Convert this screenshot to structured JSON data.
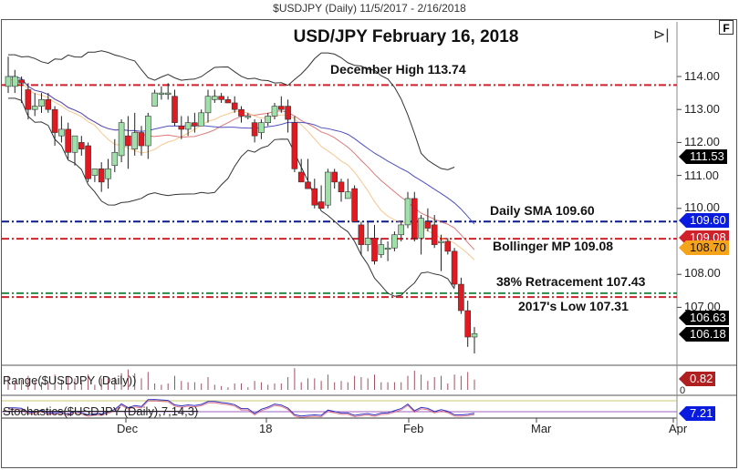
{
  "header": {
    "symbol_range": "$USDJPY (Daily)  11/5/2017 - 2/16/2018",
    "chart_title": "USD/JPY February 16, 2018",
    "f_button": "F",
    "play_icon": "⊳|"
  },
  "annotations": {
    "dec_high": "December High 113.74",
    "daily_sma": "Daily SMA 109.60",
    "bollinger_mp": "Bollinger MP 109.08",
    "retracement": "38% Retracement 107.43",
    "low_2017": "2017's Low 107.31"
  },
  "y_axis": {
    "ticks": [
      "114.00",
      "113.00",
      "112.00",
      "111.00",
      "110.00",
      "108.00",
      "107.00"
    ]
  },
  "badges": {
    "upper_band": {
      "value": "111.53",
      "color": "#000000"
    },
    "sma": {
      "value": "109.60",
      "color": "#0a1be0"
    },
    "bollinger_mp": {
      "value": "109.08",
      "color": "#d0202a"
    },
    "ema": {
      "value": "108.70",
      "color": "#f5a31a"
    },
    "lower_band": {
      "value": "106.63",
      "color": "#000000"
    },
    "close": {
      "value": "106.18",
      "color": "#000000"
    },
    "range": {
      "value": "0.82",
      "color": "#b02020"
    },
    "stoch": {
      "value": "7.21",
      "color": "#0a1be0"
    }
  },
  "panes": {
    "range_label": "Range($USDJPY (Daily))",
    "range_zero": "0",
    "stoch_label": "Stochastics($USDJPY (Daily),7,14,3)"
  },
  "x_axis": {
    "ticks": [
      "Dec",
      "18",
      "Feb",
      "Mar",
      "Apr"
    ]
  },
  "chart_data": {
    "type": "candlestick",
    "title": "USD/JPY February 16, 2018",
    "subtitle": "$USDJPY (Daily) 11/5/2017 - 2/16/2018",
    "xlabel": "",
    "ylabel": "",
    "ylim": [
      105.6,
      114.8
    ],
    "x_ticks": [
      "Dec",
      "18",
      "Feb",
      "Mar",
      "Apr"
    ],
    "grid": false,
    "horizontal_levels": [
      {
        "label": "December High",
        "value": 113.74,
        "color": "#d0202a",
        "style": "dash-dot"
      },
      {
        "label": "Daily SMA",
        "value": 109.6,
        "color": "#0a1b8f",
        "style": "dash-dot"
      },
      {
        "label": "Bollinger MP",
        "value": 109.08,
        "color": "#d0202a",
        "style": "dash-dot"
      },
      {
        "label": "38% Retracement",
        "value": 107.43,
        "color": "#2a8a4a",
        "style": "dash-dot"
      },
      {
        "label": "2017's Low",
        "value": 107.31,
        "color": "#d0202a",
        "style": "dash-dot"
      }
    ],
    "last_values": {
      "upper_bollinger": 111.53,
      "sma": 109.6,
      "bollinger_mp": 109.08,
      "ema": 108.7,
      "lower_bollinger": 106.63,
      "close": 106.18,
      "range": 0.82,
      "stochastics": 7.21
    },
    "candles": [
      {
        "o": 113.7,
        "h": 114.6,
        "l": 113.5,
        "c": 114.0
      },
      {
        "o": 113.7,
        "h": 114.2,
        "l": 113.5,
        "c": 114.0
      },
      {
        "o": 113.9,
        "h": 114.0,
        "l": 113.2,
        "c": 113.8
      },
      {
        "o": 113.6,
        "h": 113.8,
        "l": 112.7,
        "c": 113.0
      },
      {
        "o": 113.0,
        "h": 113.5,
        "l": 112.8,
        "c": 113.1
      },
      {
        "o": 113.1,
        "h": 113.5,
        "l": 112.9,
        "c": 113.3
      },
      {
        "o": 113.3,
        "h": 113.5,
        "l": 112.9,
        "c": 113.0
      },
      {
        "o": 113.0,
        "h": 113.1,
        "l": 111.9,
        "c": 112.3
      },
      {
        "o": 112.2,
        "h": 112.8,
        "l": 112.0,
        "c": 112.4
      },
      {
        "o": 112.4,
        "h": 112.6,
        "l": 111.5,
        "c": 111.7
      },
      {
        "o": 111.7,
        "h": 112.2,
        "l": 111.3,
        "c": 112.2
      },
      {
        "o": 112.0,
        "h": 112.2,
        "l": 111.6,
        "c": 111.8
      },
      {
        "o": 111.9,
        "h": 112.0,
        "l": 110.8,
        "c": 110.9
      },
      {
        "o": 111.0,
        "h": 111.2,
        "l": 110.8,
        "c": 111.2
      },
      {
        "o": 111.2,
        "h": 111.4,
        "l": 110.5,
        "c": 110.8
      },
      {
        "o": 110.9,
        "h": 111.5,
        "l": 110.6,
        "c": 111.2
      },
      {
        "o": 111.3,
        "h": 112.1,
        "l": 111.1,
        "c": 111.7
      },
      {
        "o": 111.6,
        "h": 112.7,
        "l": 111.4,
        "c": 112.6
      },
      {
        "o": 112.2,
        "h": 112.8,
        "l": 111.2,
        "c": 111.9
      },
      {
        "o": 111.8,
        "h": 112.9,
        "l": 111.6,
        "c": 112.3
      },
      {
        "o": 112.3,
        "h": 112.5,
        "l": 111.6,
        "c": 111.9
      },
      {
        "o": 111.9,
        "h": 112.9,
        "l": 111.5,
        "c": 112.8
      },
      {
        "o": 113.1,
        "h": 113.6,
        "l": 113.1,
        "c": 113.5
      },
      {
        "o": 113.5,
        "h": 113.7,
        "l": 113.3,
        "c": 113.5
      },
      {
        "o": 113.5,
        "h": 113.8,
        "l": 113.3,
        "c": 113.5
      },
      {
        "o": 113.4,
        "h": 113.6,
        "l": 112.5,
        "c": 112.6
      },
      {
        "o": 112.5,
        "h": 112.8,
        "l": 112.1,
        "c": 112.4
      },
      {
        "o": 112.4,
        "h": 112.8,
        "l": 112.2,
        "c": 112.6
      },
      {
        "o": 112.6,
        "h": 112.9,
        "l": 112.3,
        "c": 112.5
      },
      {
        "o": 112.5,
        "h": 113.0,
        "l": 112.5,
        "c": 112.9
      },
      {
        "o": 112.9,
        "h": 113.6,
        "l": 112.6,
        "c": 113.4
      },
      {
        "o": 113.3,
        "h": 113.6,
        "l": 113.2,
        "c": 113.4
      },
      {
        "o": 113.4,
        "h": 113.5,
        "l": 113.2,
        "c": 113.3
      },
      {
        "o": 113.3,
        "h": 113.4,
        "l": 113.2,
        "c": 113.2
      },
      {
        "o": 113.2,
        "h": 113.4,
        "l": 112.9,
        "c": 113.0
      },
      {
        "o": 113.0,
        "h": 113.1,
        "l": 112.6,
        "c": 112.8
      },
      {
        "o": 112.8,
        "h": 112.9,
        "l": 112.7,
        "c": 112.8
      },
      {
        "o": 112.6,
        "h": 112.7,
        "l": 112.0,
        "c": 112.2
      },
      {
        "o": 112.3,
        "h": 112.7,
        "l": 112.1,
        "c": 112.6
      },
      {
        "o": 112.6,
        "h": 112.9,
        "l": 112.5,
        "c": 112.8
      },
      {
        "o": 112.8,
        "h": 113.2,
        "l": 112.7,
        "c": 113.1
      },
      {
        "o": 113.1,
        "h": 113.4,
        "l": 112.9,
        "c": 113.0
      },
      {
        "o": 113.1,
        "h": 113.3,
        "l": 112.3,
        "c": 112.7
      },
      {
        "o": 112.6,
        "h": 112.8,
        "l": 111.1,
        "c": 111.2
      },
      {
        "o": 111.1,
        "h": 111.5,
        "l": 110.9,
        "c": 110.8
      },
      {
        "o": 110.8,
        "h": 111.5,
        "l": 110.6,
        "c": 110.6
      },
      {
        "o": 110.6,
        "h": 110.9,
        "l": 110.0,
        "c": 110.1
      },
      {
        "o": 110.2,
        "h": 110.7,
        "l": 110.0,
        "c": 110.0
      },
      {
        "o": 110.1,
        "h": 111.2,
        "l": 110.0,
        "c": 111.1
      },
      {
        "o": 111.1,
        "h": 111.2,
        "l": 110.6,
        "c": 110.8
      },
      {
        "o": 110.8,
        "h": 110.9,
        "l": 110.2,
        "c": 110.5
      },
      {
        "o": 110.3,
        "h": 110.9,
        "l": 110.3,
        "c": 110.5
      },
      {
        "o": 110.6,
        "h": 110.7,
        "l": 109.6,
        "c": 109.6
      },
      {
        "o": 109.5,
        "h": 109.6,
        "l": 108.6,
        "c": 108.9
      },
      {
        "o": 108.9,
        "h": 109.6,
        "l": 108.7,
        "c": 109.1
      },
      {
        "o": 109.1,
        "h": 109.5,
        "l": 108.3,
        "c": 108.4
      },
      {
        "o": 108.6,
        "h": 109.1,
        "l": 108.5,
        "c": 108.9
      },
      {
        "o": 108.8,
        "h": 109.0,
        "l": 108.4,
        "c": 108.8
      },
      {
        "o": 108.8,
        "h": 109.3,
        "l": 108.7,
        "c": 109.2
      },
      {
        "o": 109.2,
        "h": 109.6,
        "l": 109.0,
        "c": 109.5
      },
      {
        "o": 109.5,
        "h": 110.5,
        "l": 109.4,
        "c": 110.3
      },
      {
        "o": 110.3,
        "h": 110.5,
        "l": 109.0,
        "c": 109.1
      },
      {
        "o": 109.1,
        "h": 109.8,
        "l": 108.6,
        "c": 109.7
      },
      {
        "o": 109.6,
        "h": 110.0,
        "l": 109.3,
        "c": 109.4
      },
      {
        "o": 109.5,
        "h": 109.8,
        "l": 108.8,
        "c": 108.9
      },
      {
        "o": 109.0,
        "h": 109.2,
        "l": 108.1,
        "c": 109.0
      },
      {
        "o": 109.0,
        "h": 109.1,
        "l": 108.6,
        "c": 108.7
      },
      {
        "o": 108.7,
        "h": 108.8,
        "l": 107.6,
        "c": 107.7
      },
      {
        "o": 107.7,
        "h": 107.9,
        "l": 106.8,
        "c": 106.9
      },
      {
        "o": 106.9,
        "h": 107.2,
        "l": 105.8,
        "c": 106.1
      },
      {
        "o": 106.1,
        "h": 106.4,
        "l": 105.6,
        "c": 106.2
      }
    ]
  }
}
